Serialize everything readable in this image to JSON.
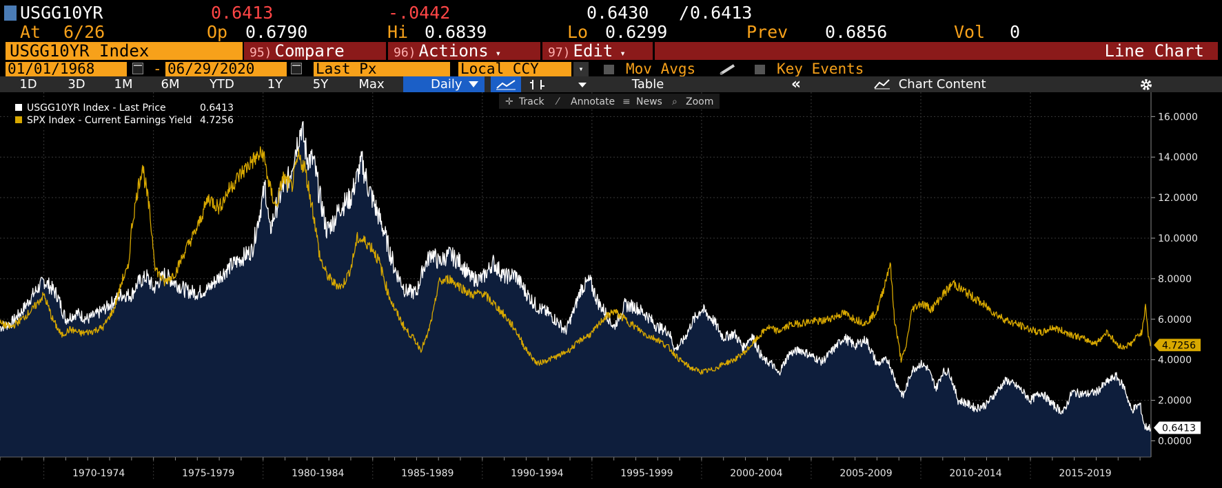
{
  "header": {
    "ticker": "USGG10YR",
    "last": "0.6413",
    "change": "-.0442",
    "bid_ask_bid": "0.6430",
    "bid_ask_sep": "/",
    "bid_ask_ask": "0.6413",
    "at_label": "At",
    "at_value": "6/26",
    "op_label": "Op",
    "op_value": "0.6790",
    "hi_label": "Hi",
    "hi_value": "0.6839",
    "lo_label": "Lo",
    "lo_value": "0.6299",
    "prev_label": "Prev",
    "prev_value": "0.6856",
    "vol_label": "Vol",
    "vol_value": "0"
  },
  "toolbar": {
    "security": "USGG10YR Index",
    "compare_num": "95)",
    "compare_label": "Compare",
    "actions_num": "96)",
    "actions_label": "Actions",
    "edit_num": "97)",
    "edit_label": "Edit",
    "chart_type": "Line Chart",
    "caret": "▾"
  },
  "settings": {
    "start_date": "01/01/1968",
    "end_date": "06/29/2020",
    "date_dash": "-",
    "field": "Last Px",
    "currency": "Local CCY",
    "mov_avgs": "Mov Avgs",
    "key_events": "Key Events"
  },
  "periods": {
    "p1d": "1D",
    "p3d": "3D",
    "p1m": "1M",
    "p6m": "6M",
    "pytd": "YTD",
    "p1y": "1Y",
    "p5y": "5Y",
    "pmax": "Max",
    "frequency": "Daily",
    "table": "Table",
    "collapse": "«",
    "chart_content": "Chart Content"
  },
  "chart_tools": {
    "track": "Track",
    "annotate": "Annotate",
    "news": "News",
    "zoom": "Zoom"
  },
  "colors": {
    "white_series": "#ffffff",
    "yellow_series": "#d8a800",
    "area_fill": "#0e1e3c",
    "orange": "#f7a11a",
    "red_bar": "#8b1a1a"
  },
  "chart_data": {
    "type": "line",
    "x_range": [
      1968.0,
      2020.5
    ],
    "ylim": [
      -0.8,
      17.2
    ],
    "y_ticks": [
      0,
      2,
      4,
      6,
      8,
      10,
      12,
      14,
      16
    ],
    "y_tick_labels": [
      "0.0000",
      "2.0000",
      "4.0000",
      "6.0000",
      "8.0000",
      "10.0000",
      "12.0000",
      "14.0000",
      "16.0000"
    ],
    "x_bands": [
      {
        "label": "1970-1974",
        "start": 1970,
        "end": 1975
      },
      {
        "label": "1975-1979",
        "start": 1975,
        "end": 1980
      },
      {
        "label": "1980-1984",
        "start": 1980,
        "end": 1985
      },
      {
        "label": "1985-1989",
        "start": 1985,
        "end": 1990
      },
      {
        "label": "1990-1994",
        "start": 1990,
        "end": 1995
      },
      {
        "label": "1995-1999",
        "start": 1995,
        "end": 2000
      },
      {
        "label": "2000-2004",
        "start": 2000,
        "end": 2005
      },
      {
        "label": "2005-2009",
        "start": 2005,
        "end": 2010
      },
      {
        "label": "2010-2014",
        "start": 2010,
        "end": 2015
      },
      {
        "label": "2015-2019",
        "start": 2015,
        "end": 2020
      }
    ],
    "legend_position": "top-left",
    "series": [
      {
        "name": "USGG10YR Index - Last Price",
        "last_value": "0.6413",
        "color": "#ffffff",
        "filled": true,
        "x": [
          1968.0,
          1968.5,
          1969.0,
          1969.5,
          1970.0,
          1970.3,
          1970.6,
          1971.0,
          1971.5,
          1972.0,
          1972.5,
          1973.0,
          1973.5,
          1974.0,
          1974.3,
          1974.7,
          1975.0,
          1975.5,
          1976.0,
          1976.5,
          1977.0,
          1977.5,
          1978.0,
          1978.5,
          1979.0,
          1979.5,
          1979.8,
          1980.1,
          1980.3,
          1980.6,
          1980.9,
          1981.2,
          1981.5,
          1981.75,
          1982.0,
          1982.3,
          1982.6,
          1982.9,
          1983.2,
          1983.5,
          1984.0,
          1984.5,
          1984.8,
          1985.2,
          1985.5,
          1986.0,
          1986.5,
          1987.0,
          1987.3,
          1987.7,
          1988.0,
          1988.5,
          1989.0,
          1989.5,
          1990.0,
          1990.5,
          1991.0,
          1991.5,
          1992.0,
          1992.5,
          1993.0,
          1993.5,
          1993.8,
          1994.2,
          1994.5,
          1994.9,
          1995.3,
          1995.7,
          1996.0,
          1996.5,
          1997.0,
          1997.5,
          1998.0,
          1998.5,
          1998.8,
          1999.2,
          1999.6,
          2000.0,
          2000.5,
          2001.0,
          2001.5,
          2001.9,
          2002.3,
          2002.8,
          2003.2,
          2003.5,
          2004.0,
          2004.5,
          2005.0,
          2005.5,
          2006.0,
          2006.5,
          2007.0,
          2007.5,
          2008.0,
          2008.5,
          2008.9,
          2009.2,
          2009.6,
          2010.0,
          2010.3,
          2010.7,
          2011.0,
          2011.3,
          2011.7,
          2012.0,
          2012.5,
          2013.0,
          2013.5,
          2013.9,
          2014.5,
          2015.0,
          2015.5,
          2016.0,
          2016.5,
          2016.9,
          2017.5,
          2018.0,
          2018.5,
          2018.9,
          2019.3,
          2019.6,
          2020.0,
          2020.2,
          2020.5
        ],
        "values": [
          5.6,
          5.8,
          6.4,
          7.2,
          7.9,
          7.6,
          7.2,
          6.0,
          6.3,
          6.0,
          6.3,
          6.7,
          7.2,
          7.2,
          7.8,
          8.1,
          7.5,
          8.2,
          7.8,
          7.4,
          7.3,
          7.5,
          8.1,
          8.6,
          9.0,
          9.4,
          11.0,
          12.6,
          10.3,
          11.5,
          12.5,
          13.0,
          14.5,
          15.5,
          14.0,
          13.8,
          12.0,
          10.4,
          10.8,
          11.5,
          12.0,
          13.8,
          12.5,
          11.3,
          10.4,
          8.5,
          7.4,
          7.3,
          8.5,
          9.3,
          8.8,
          9.2,
          8.8,
          8.0,
          8.0,
          8.8,
          8.1,
          8.2,
          7.3,
          6.6,
          6.3,
          5.8,
          5.4,
          6.5,
          7.5,
          7.9,
          6.8,
          6.2,
          5.6,
          6.7,
          6.6,
          6.2,
          5.6,
          5.4,
          4.5,
          5.0,
          5.9,
          6.5,
          6.0,
          5.1,
          5.3,
          4.6,
          5.2,
          4.0,
          3.8,
          3.3,
          4.3,
          4.5,
          4.2,
          3.9,
          4.5,
          5.1,
          4.7,
          5.0,
          3.8,
          4.0,
          2.8,
          2.2,
          3.5,
          3.8,
          3.6,
          2.6,
          3.4,
          3.4,
          2.0,
          1.9,
          1.6,
          1.8,
          2.5,
          3.0,
          2.6,
          2.0,
          2.4,
          1.8,
          1.4,
          2.4,
          2.3,
          2.4,
          2.9,
          3.2,
          2.6,
          1.5,
          1.8,
          0.7,
          0.6413
        ]
      },
      {
        "name": "SPX Index - Current Earnings Yield",
        "last_value": "4.7256",
        "color": "#d8a800",
        "filled": false,
        "x": [
          1968.0,
          1968.5,
          1969.0,
          1969.5,
          1970.0,
          1970.4,
          1970.8,
          1971.2,
          1971.7,
          1972.2,
          1972.7,
          1973.2,
          1973.6,
          1973.85,
          1974.0,
          1974.3,
          1974.5,
          1974.8,
          1975.1,
          1975.5,
          1976.0,
          1976.5,
          1977.0,
          1977.5,
          1978.0,
          1978.5,
          1979.0,
          1979.5,
          1980.0,
          1980.3,
          1980.6,
          1980.9,
          1981.3,
          1981.6,
          1981.9,
          1982.3,
          1982.6,
          1982.9,
          1983.2,
          1983.6,
          1984.0,
          1984.3,
          1984.7,
          1985.0,
          1985.3,
          1985.7,
          1986.0,
          1986.5,
          1986.9,
          1987.2,
          1987.5,
          1987.8,
          1988.0,
          1988.5,
          1989.0,
          1989.5,
          1990.0,
          1990.5,
          1991.0,
          1991.5,
          1992.0,
          1992.5,
          1993.0,
          1993.5,
          1994.0,
          1994.5,
          1995.0,
          1995.5,
          1996.0,
          1996.5,
          1997.0,
          1997.5,
          1998.0,
          1998.5,
          1999.0,
          1999.5,
          2000.0,
          2000.5,
          2001.0,
          2001.5,
          2002.0,
          2002.5,
          2003.0,
          2003.5,
          2004.0,
          2004.5,
          2005.0,
          2005.5,
          2006.0,
          2006.5,
          2007.0,
          2007.5,
          2008.0,
          2008.3,
          2008.6,
          2008.8,
          2009.1,
          2009.3,
          2009.6,
          2010.0,
          2010.5,
          2011.0,
          2011.5,
          2011.8,
          2012.1,
          2012.5,
          2013.0,
          2013.5,
          2014.0,
          2014.5,
          2015.0,
          2015.5,
          2016.0,
          2016.5,
          2017.0,
          2017.5,
          2018.0,
          2018.5,
          2018.9,
          2019.2,
          2019.6,
          2019.9,
          2020.1,
          2020.25,
          2020.4,
          2020.5
        ],
        "values": [
          5.8,
          5.6,
          6.0,
          6.5,
          7.2,
          6.0,
          5.2,
          5.5,
          5.3,
          5.4,
          5.6,
          6.5,
          8.0,
          8.5,
          10.5,
          12.5,
          13.6,
          11.5,
          8.5,
          7.8,
          8.3,
          9.5,
          10.5,
          12.0,
          11.5,
          12.5,
          13.2,
          13.8,
          14.2,
          12.5,
          11.5,
          13.0,
          12.5,
          14.0,
          13.5,
          11.2,
          9.0,
          8.2,
          7.8,
          7.6,
          8.5,
          10.0,
          9.8,
          9.5,
          8.8,
          7.3,
          6.5,
          5.5,
          5.0,
          4.5,
          5.2,
          6.5,
          7.8,
          8.0,
          7.6,
          7.2,
          7.3,
          6.8,
          6.2,
          5.5,
          4.5,
          3.8,
          4.0,
          4.2,
          4.5,
          5.0,
          5.3,
          6.0,
          6.4,
          6.0,
          5.6,
          5.2,
          5.0,
          4.6,
          4.0,
          3.6,
          3.4,
          3.5,
          3.8,
          4.0,
          4.4,
          5.0,
          5.6,
          5.4,
          5.7,
          5.8,
          5.9,
          5.9,
          6.1,
          6.3,
          6.0,
          5.8,
          6.4,
          7.5,
          8.8,
          6.0,
          4.0,
          4.5,
          6.5,
          6.8,
          6.5,
          7.2,
          7.8,
          7.5,
          7.3,
          7.0,
          6.6,
          6.2,
          5.9,
          5.7,
          5.5,
          5.3,
          5.6,
          5.4,
          5.2,
          5.0,
          4.8,
          5.4,
          4.8,
          4.6,
          4.8,
          5.2,
          5.4,
          6.8,
          5.0,
          4.7256
        ]
      }
    ]
  }
}
